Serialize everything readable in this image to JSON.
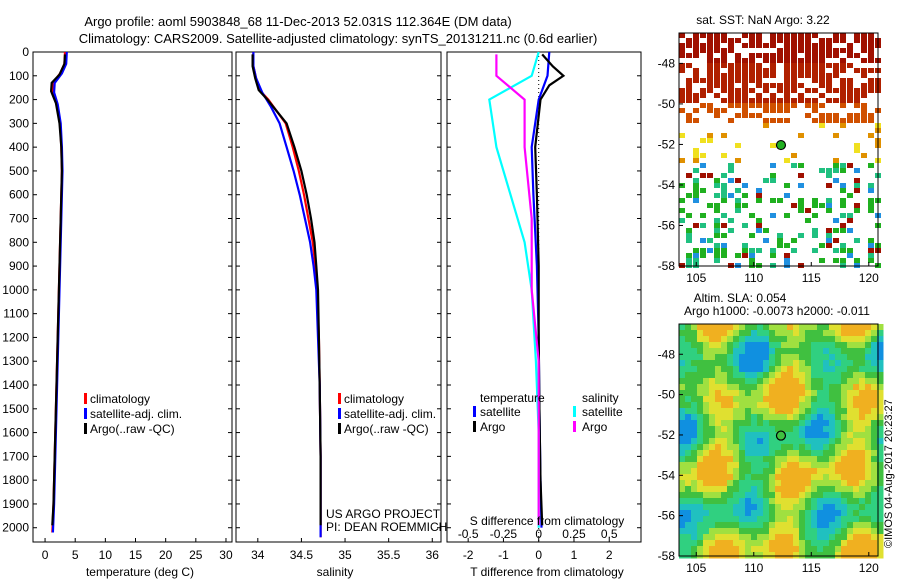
{
  "header": {
    "title_line1": "Argo profile: aoml 5903848_68 11-Dec-2013 52.031S 112.364E (DM data)",
    "title_line2": "Climatology: CARS2009. Satellite-adjusted climatology: synTS_20131211.nc (0.6d earlier)"
  },
  "colors": {
    "climatology": "#ff0000",
    "satellite": "#0000ff",
    "argo": "#000000",
    "sat_s": "#00ffff",
    "argo_s": "#ff00ff"
  },
  "depth_axis": {
    "ticks": [
      0,
      100,
      200,
      300,
      400,
      500,
      600,
      700,
      800,
      900,
      1000,
      1100,
      1200,
      1300,
      1400,
      1500,
      1600,
      1700,
      1800,
      1900,
      2000
    ]
  },
  "legend": {
    "climatology": "climatology",
    "satellite": "satellite-adj. clim.",
    "argo": "Argo(..raw -QC)"
  },
  "chart_data": [
    {
      "type": "line",
      "title": "",
      "xlabel": "temperature (deg C)",
      "ylabel": "",
      "xlim": [
        -2,
        31
      ],
      "ylim": [
        2060,
        0
      ],
      "xticks": [
        0,
        5,
        10,
        15,
        20,
        25,
        30
      ],
      "series": [
        {
          "name": "climatology",
          "color": "#ff0000",
          "points": [
            [
              3.3,
              0
            ],
            [
              3.2,
              50
            ],
            [
              2.5,
              90
            ],
            [
              1.3,
              130
            ],
            [
              1.2,
              170
            ],
            [
              1.9,
              220
            ],
            [
              2.5,
              300
            ],
            [
              2.7,
              400
            ],
            [
              2.8,
              500
            ],
            [
              2.6,
              700
            ],
            [
              2.4,
              900
            ],
            [
              2.2,
              1100
            ],
            [
              2.0,
              1300
            ],
            [
              1.8,
              1500
            ],
            [
              1.6,
              1700
            ],
            [
              1.4,
              1900
            ],
            [
              1.2,
              2020
            ]
          ]
        },
        {
          "name": "satellite-adj. clim.",
          "color": "#0000ff",
          "points": [
            [
              3.6,
              0
            ],
            [
              3.5,
              50
            ],
            [
              2.8,
              90
            ],
            [
              1.6,
              130
            ],
            [
              1.5,
              170
            ],
            [
              2.1,
              220
            ],
            [
              2.6,
              300
            ],
            [
              2.8,
              400
            ],
            [
              2.9,
              500
            ],
            [
              2.7,
              700
            ],
            [
              2.5,
              900
            ],
            [
              2.3,
              1100
            ],
            [
              2.1,
              1300
            ],
            [
              1.9,
              1500
            ],
            [
              1.7,
              1700
            ],
            [
              1.5,
              1900
            ],
            [
              1.3,
              2020
            ]
          ]
        },
        {
          "name": "Argo(..raw -QC)",
          "color": "#000000",
          "points": [
            [
              3.3,
              10
            ],
            [
              3.2,
              50
            ],
            [
              2.4,
              95
            ],
            [
              1.1,
              130
            ],
            [
              1.0,
              165
            ],
            [
              1.8,
              215
            ],
            [
              2.4,
              300
            ],
            [
              2.7,
              400
            ],
            [
              2.8,
              500
            ],
            [
              2.6,
              700
            ],
            [
              2.4,
              900
            ],
            [
              2.2,
              1100
            ],
            [
              2.0,
              1300
            ],
            [
              1.8,
              1500
            ],
            [
              1.6,
              1700
            ],
            [
              1.4,
              1900
            ],
            [
              1.2,
              1990
            ]
          ]
        }
      ],
      "legend": [
        "climatology",
        "satellite-adj. clim.",
        "Argo(..raw -QC)"
      ]
    },
    {
      "type": "line",
      "title": "",
      "xlabel": "salinity",
      "xlim": [
        33.75,
        36.1
      ],
      "ylim": [
        2060,
        0
      ],
      "xticks": [
        34,
        34.5,
        35,
        35.5,
        36
      ],
      "series": [
        {
          "name": "climatology",
          "color": "#ff0000",
          "points": [
            [
              33.95,
              0
            ],
            [
              33.95,
              60
            ],
            [
              33.98,
              110
            ],
            [
              34.02,
              160
            ],
            [
              34.12,
              200
            ],
            [
              34.22,
              250
            ],
            [
              34.32,
              300
            ],
            [
              34.4,
              400
            ],
            [
              34.47,
              500
            ],
            [
              34.53,
              600
            ],
            [
              34.58,
              700
            ],
            [
              34.63,
              800
            ],
            [
              34.66,
              900
            ],
            [
              34.68,
              1000
            ],
            [
              34.7,
              1200
            ],
            [
              34.71,
              1400
            ],
            [
              34.72,
              1700
            ],
            [
              34.72,
              2040
            ]
          ]
        },
        {
          "name": "satellite-adj. clim.",
          "color": "#0000ff",
          "points": [
            [
              33.95,
              0
            ],
            [
              33.95,
              60
            ],
            [
              33.98,
              110
            ],
            [
              34.05,
              170
            ],
            [
              34.15,
              230
            ],
            [
              34.25,
              300
            ],
            [
              34.33,
              400
            ],
            [
              34.41,
              500
            ],
            [
              34.48,
              600
            ],
            [
              34.54,
              700
            ],
            [
              34.6,
              800
            ],
            [
              34.64,
              900
            ],
            [
              34.67,
              1000
            ],
            [
              34.69,
              1200
            ],
            [
              34.71,
              1400
            ],
            [
              34.72,
              1700
            ],
            [
              34.72,
              2040
            ]
          ]
        },
        {
          "name": "Argo(..raw -QC)",
          "color": "#000000",
          "points": [
            [
              33.94,
              10
            ],
            [
              33.94,
              60
            ],
            [
              33.97,
              110
            ],
            [
              34.01,
              160
            ],
            [
              34.11,
              200
            ],
            [
              34.22,
              250
            ],
            [
              34.33,
              300
            ],
            [
              34.42,
              400
            ],
            [
              34.5,
              500
            ],
            [
              34.56,
              600
            ],
            [
              34.61,
              700
            ],
            [
              34.65,
              800
            ],
            [
              34.67,
              900
            ],
            [
              34.69,
              1000
            ],
            [
              34.7,
              1200
            ],
            [
              34.71,
              1400
            ],
            [
              34.72,
              1700
            ],
            [
              34.72,
              1990
            ]
          ]
        }
      ],
      "legend": [
        "climatology",
        "satellite-adj. clim.",
        "Argo(..raw -QC)"
      ],
      "annotation": [
        "US ARGO PROJECT",
        "PI: DEAN ROEMMICH"
      ]
    },
    {
      "type": "line",
      "title": "",
      "xlabel": "T difference from climatology",
      "xlabel_top": "S difference from climatology",
      "xlim": [
        -2.6,
        2.9
      ],
      "ylim": [
        2060,
        0
      ],
      "xticks": [
        -2,
        -1,
        0,
        1,
        2
      ],
      "xticks_top": [
        -0.5,
        -0.25,
        0,
        0.25,
        0.5
      ],
      "series": [
        {
          "name": "satellite",
          "group": "temperature",
          "color": "#0000ff",
          "points": [
            [
              0.3,
              0
            ],
            [
              0.25,
              100
            ],
            [
              0.0,
              200
            ],
            [
              -0.2,
              400
            ],
            [
              -0.15,
              600
            ],
            [
              -0.05,
              900
            ],
            [
              0.0,
              1200
            ],
            [
              0.02,
              1500
            ],
            [
              0.05,
              1800
            ],
            [
              0.08,
              2000
            ]
          ]
        },
        {
          "name": "Argo",
          "group": "temperature",
          "color": "#000000",
          "points": [
            [
              0.1,
              10
            ],
            [
              0.4,
              60
            ],
            [
              0.7,
              100
            ],
            [
              0.3,
              140
            ],
            [
              0.05,
              200
            ],
            [
              -0.1,
              400
            ],
            [
              -0.05,
              600
            ],
            [
              0.0,
              900
            ],
            [
              0.0,
              1200
            ],
            [
              0.02,
              1500
            ],
            [
              0.05,
              1800
            ],
            [
              0.1,
              1990
            ]
          ]
        },
        {
          "name": "satellite",
          "group": "salinity",
          "color": "#00ffff",
          "points": [
            [
              0.0,
              0
            ],
            [
              -0.05,
              100
            ],
            [
              -0.35,
              200
            ],
            [
              -0.3,
              400
            ],
            [
              -0.2,
              600
            ],
            [
              -0.1,
              800
            ],
            [
              -0.05,
              1000
            ],
            [
              -0.02,
              1300
            ],
            [
              0.0,
              1600
            ],
            [
              0.0,
              2000
            ]
          ]
        },
        {
          "name": "Argo",
          "group": "salinity",
          "color": "#ff00ff",
          "points": [
            [
              -0.3,
              10
            ],
            [
              -0.3,
              100
            ],
            [
              -0.1,
              200
            ],
            [
              -0.1,
              400
            ],
            [
              -0.05,
              700
            ],
            [
              -0.05,
              1000
            ],
            [
              0.0,
              1300
            ],
            [
              0.0,
              1600
            ],
            [
              0.0,
              1990
            ]
          ]
        }
      ],
      "legend_groups": [
        "temperature",
        "salinity"
      ],
      "legend_items": [
        "satellite",
        "Argo"
      ]
    }
  ],
  "maps": {
    "top": {
      "title": "sat. SST: NaN Argo: 3.22",
      "yticks": [
        -48,
        -50,
        -52,
        -54,
        -56,
        -58
      ],
      "xticks": [
        105,
        110,
        115,
        120
      ]
    },
    "bottom": {
      "title_line1": "Altim. SLA: 0.054",
      "title_line2": "Argo h1000: -0.0073 h2000: -0.011",
      "yticks": [
        -48,
        -50,
        -52,
        -54,
        -56,
        -58
      ],
      "xticks": [
        105,
        110,
        115,
        120
      ],
      "side_text": "©IMOS 04-Aug-2017 20:23:27"
    },
    "float_position": {
      "lon": 112.364,
      "lat": -52.031
    }
  }
}
